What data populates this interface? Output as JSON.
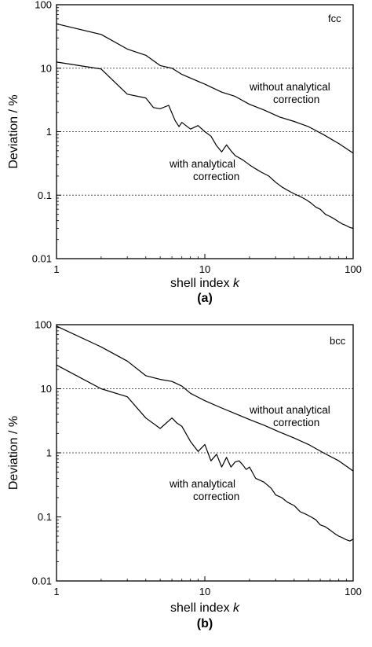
{
  "chart_data": [
    {
      "type": "line",
      "panel_label": "(a)",
      "structure_label": "fcc",
      "xlabel": "shell index",
      "xlabel_var": "k",
      "ylabel": "Deviation / %",
      "x_scale": "log",
      "y_scale": "log",
      "xlim": [
        1,
        100
      ],
      "ylim": [
        0.01,
        100
      ],
      "x_ticks": [
        "1",
        "10",
        "100"
      ],
      "y_ticks": [
        "0.01",
        "0.1",
        "1",
        "10",
        "100"
      ],
      "grid_y_dotted": [
        0.1,
        1,
        10
      ],
      "annotations": [
        {
          "series": "without",
          "lines": [
            "without analytical",
            "correction"
          ]
        },
        {
          "series": "with",
          "lines": [
            "with analytical",
            "correction"
          ]
        }
      ],
      "series": [
        {
          "key": "without",
          "x": [
            1,
            2,
            3,
            4,
            5,
            6,
            7,
            8,
            10,
            13,
            16,
            20,
            25,
            32,
            40,
            50,
            63,
            80,
            100
          ],
          "y": [
            50,
            34,
            20,
            16,
            11,
            10,
            8.0,
            7.0,
            5.6,
            4.2,
            3.6,
            2.7,
            2.2,
            1.7,
            1.45,
            1.2,
            0.9,
            0.65,
            0.46
          ]
        },
        {
          "key": "with",
          "x": [
            1,
            2,
            3,
            4,
            4.5,
            5,
            5.7,
            6.3,
            6.7,
            7,
            8,
            9,
            10,
            11,
            12,
            13,
            14,
            15,
            16,
            18,
            20,
            22,
            24,
            27,
            30,
            33,
            36,
            40,
            44,
            48,
            52,
            56,
            60,
            65,
            70,
            75,
            80,
            85,
            90,
            95,
            100
          ],
          "y": [
            12.5,
            9.7,
            3.9,
            3.4,
            2.4,
            2.3,
            2.6,
            1.5,
            1.2,
            1.4,
            1.1,
            1.25,
            1.0,
            0.85,
            0.6,
            0.48,
            0.62,
            0.5,
            0.42,
            0.36,
            0.3,
            0.26,
            0.23,
            0.2,
            0.16,
            0.135,
            0.12,
            0.105,
            0.095,
            0.085,
            0.075,
            0.065,
            0.06,
            0.05,
            0.046,
            0.042,
            0.038,
            0.035,
            0.033,
            0.031,
            0.03
          ]
        }
      ]
    },
    {
      "type": "line",
      "panel_label": "(b)",
      "structure_label": "bcc",
      "xlabel": "shell index",
      "xlabel_var": "k",
      "ylabel": "Deviation / %",
      "x_scale": "log",
      "y_scale": "log",
      "xlim": [
        1,
        100
      ],
      "ylim": [
        0.01,
        100
      ],
      "x_ticks": [
        "1",
        "10",
        "100"
      ],
      "y_ticks": [
        "0.01",
        "0.1",
        "1",
        "10",
        "100"
      ],
      "grid_y_dotted": [
        1,
        10
      ],
      "annotations": [
        {
          "series": "without",
          "lines": [
            "without analytical",
            "correction"
          ]
        },
        {
          "series": "with",
          "lines": [
            "with analytical",
            "correction"
          ]
        }
      ],
      "series": [
        {
          "key": "without",
          "x": [
            1,
            2,
            3,
            4,
            5,
            6,
            7,
            8,
            10,
            13,
            16,
            20,
            25,
            32,
            40,
            50,
            63,
            80,
            100
          ],
          "y": [
            95,
            45,
            27,
            16,
            14,
            13,
            11,
            8.5,
            6.5,
            5.0,
            4.1,
            3.3,
            2.7,
            2.1,
            1.7,
            1.35,
            1.0,
            0.75,
            0.52
          ]
        },
        {
          "key": "with",
          "x": [
            1,
            2,
            3,
            4,
            5,
            6,
            6.5,
            7,
            8,
            9,
            10,
            11,
            12,
            13,
            14,
            15,
            16,
            17,
            18,
            19,
            20,
            22,
            25,
            28,
            30,
            33,
            36,
            40,
            44,
            48,
            52,
            56,
            60,
            65,
            70,
            75,
            80,
            85,
            90,
            95,
            100
          ],
          "y": [
            23.5,
            10,
            7.5,
            3.5,
            2.4,
            3.5,
            2.9,
            2.6,
            1.5,
            1.05,
            1.35,
            0.75,
            0.95,
            0.6,
            0.85,
            0.6,
            0.72,
            0.75,
            0.65,
            0.55,
            0.6,
            0.4,
            0.35,
            0.28,
            0.22,
            0.2,
            0.17,
            0.15,
            0.12,
            0.11,
            0.1,
            0.09,
            0.075,
            0.07,
            0.062,
            0.055,
            0.05,
            0.047,
            0.044,
            0.042,
            0.045
          ]
        }
      ]
    }
  ]
}
